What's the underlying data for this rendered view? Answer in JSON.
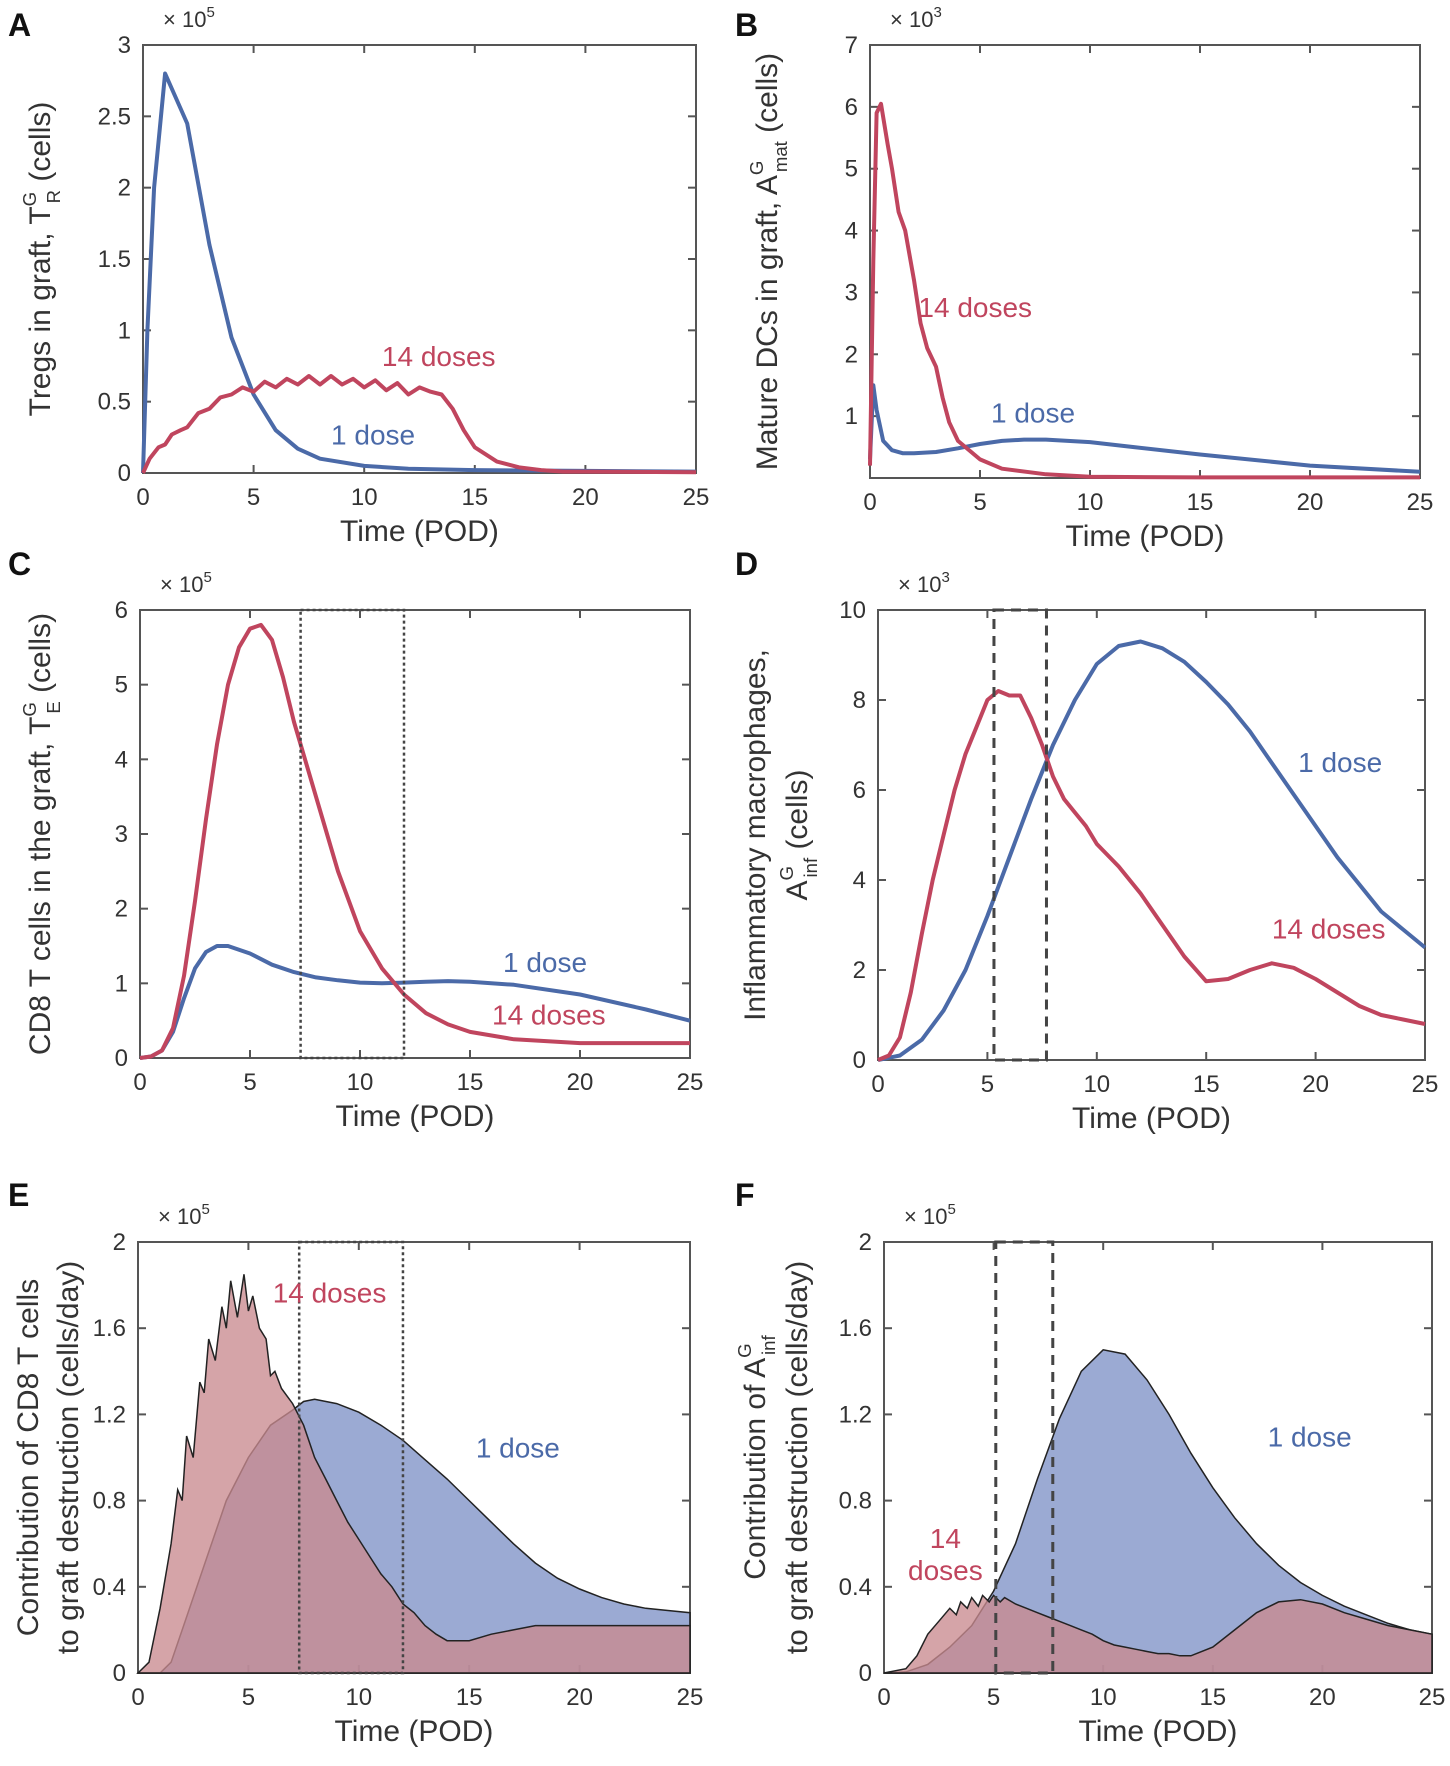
{
  "figure": {
    "xlabel": "Time (POD)",
    "series_colors": {
      "1 dose": "#4b6aa8",
      "14 doses": "#c0455e"
    },
    "fill_colors": {
      "1 dose": "#7f92c6",
      "14 doses": "#c98a90",
      "overlap": "#9e6f88"
    }
  },
  "chart_data": [
    {
      "panel": "A",
      "type": "line",
      "ylabel_parts": {
        "prefix": "Tregs in graft, T",
        "sup": "G",
        "sub": "R",
        "suffix": " (cells)"
      },
      "multiplier": "× 10",
      "exponent": "5",
      "xlim": [
        0,
        25
      ],
      "ylim": [
        0,
        3
      ],
      "xticks": [
        "0",
        "5",
        "10",
        "15",
        "20",
        "25"
      ],
      "yticks": [
        "0",
        "0.5",
        "1",
        "1.5",
        "2",
        "2.5",
        "3"
      ],
      "series": [
        {
          "name": "1 dose",
          "label": "1 dose",
          "x": [
            0,
            0.2,
            0.5,
            1,
            2,
            3,
            4,
            5,
            6,
            7,
            8,
            10,
            12,
            15,
            20,
            25
          ],
          "y": [
            0,
            1.0,
            2.0,
            2.8,
            2.45,
            1.6,
            0.95,
            0.55,
            0.3,
            0.17,
            0.1,
            0.05,
            0.03,
            0.02,
            0.015,
            0.01
          ]
        },
        {
          "name": "14 doses",
          "label": "14 doses",
          "x": [
            0,
            0.3,
            0.7,
            1.0,
            1.3,
            1.7,
            2.0,
            2.5,
            3.0,
            3.5,
            4.0,
            4.5,
            5.0,
            5.5,
            6.0,
            6.5,
            7.0,
            7.5,
            8.0,
            8.5,
            9.0,
            9.5,
            10.0,
            10.5,
            11.0,
            11.5,
            12.0,
            12.5,
            13.0,
            13.5,
            14,
            14.5,
            15,
            16,
            17,
            18,
            19,
            20,
            25
          ],
          "y": [
            0,
            0.1,
            0.18,
            0.2,
            0.27,
            0.3,
            0.32,
            0.42,
            0.45,
            0.53,
            0.55,
            0.6,
            0.57,
            0.64,
            0.6,
            0.66,
            0.62,
            0.68,
            0.62,
            0.68,
            0.62,
            0.66,
            0.6,
            0.65,
            0.58,
            0.63,
            0.55,
            0.6,
            0.57,
            0.55,
            0.45,
            0.3,
            0.18,
            0.08,
            0.04,
            0.02,
            0.01,
            0.01,
            0.005
          ]
        }
      ],
      "label_pos": {
        "1 dose": [
          8.5,
          0.2
        ],
        "14 doses": [
          10.8,
          0.75
        ]
      }
    },
    {
      "panel": "B",
      "type": "line",
      "ylabel_parts": {
        "prefix": "Mature DCs in graft, A",
        "sup": "G",
        "sub": "mat",
        "suffix": " (cells)"
      },
      "multiplier": "× 10",
      "exponent": "3",
      "xlim": [
        0,
        25
      ],
      "ylim": [
        0,
        7
      ],
      "xticks": [
        "0",
        "5",
        "10",
        "15",
        "20",
        "25"
      ],
      "yticks": [
        "1",
        "2",
        "3",
        "4",
        "5",
        "6",
        "7"
      ],
      "series": [
        {
          "name": "1 dose",
          "label": "1 dose",
          "x": [
            0,
            0.15,
            0.3,
            0.6,
            1,
            1.5,
            2,
            3,
            4,
            5,
            6,
            7,
            8,
            10,
            12,
            15,
            20,
            25
          ],
          "y": [
            0.3,
            1.5,
            1.1,
            0.6,
            0.45,
            0.4,
            0.4,
            0.42,
            0.48,
            0.55,
            0.6,
            0.62,
            0.62,
            0.58,
            0.5,
            0.38,
            0.2,
            0.1
          ]
        },
        {
          "name": "14 doses",
          "label": "14 doses",
          "x": [
            0,
            0.15,
            0.3,
            0.5,
            0.8,
            1.0,
            1.3,
            1.6,
            2.0,
            2.3,
            2.6,
            3.0,
            3.3,
            3.6,
            4.0,
            5,
            6,
            8,
            10,
            15,
            20,
            25
          ],
          "y": [
            0.2,
            3.5,
            5.9,
            6.05,
            5.4,
            5.0,
            4.3,
            4.0,
            3.2,
            2.5,
            2.1,
            1.8,
            1.3,
            0.9,
            0.6,
            0.3,
            0.15,
            0.06,
            0.02,
            0.01,
            0.01,
            0.01
          ]
        }
      ],
      "label_pos": {
        "1 dose": [
          5.5,
          0.9
        ],
        "14 doses": [
          2.2,
          2.6
        ]
      }
    },
    {
      "panel": "C",
      "type": "line",
      "ylabel_parts": {
        "prefix": "CD8 T cells in the graft, T",
        "sup": "G",
        "sub": "E",
        "suffix": " (cells)"
      },
      "multiplier": "× 10",
      "exponent": "5",
      "xlim": [
        0,
        25
      ],
      "ylim": [
        0,
        6
      ],
      "xticks": [
        "0",
        "5",
        "10",
        "15",
        "20",
        "25"
      ],
      "yticks": [
        "0",
        "1",
        "2",
        "3",
        "4",
        "5",
        "6"
      ],
      "box": [
        7.3,
        12
      ],
      "series": [
        {
          "name": "1 dose",
          "label": "1 dose",
          "x": [
            0,
            0.5,
            1,
            1.5,
            2,
            2.5,
            3,
            3.5,
            4,
            5,
            6,
            7,
            8,
            9,
            10,
            11,
            12,
            13,
            14,
            15,
            17,
            20,
            23,
            25
          ],
          "y": [
            0,
            0.02,
            0.1,
            0.35,
            0.8,
            1.2,
            1.42,
            1.5,
            1.5,
            1.4,
            1.25,
            1.15,
            1.08,
            1.04,
            1.01,
            1.0,
            1.01,
            1.02,
            1.03,
            1.02,
            0.98,
            0.85,
            0.65,
            0.5
          ]
        },
        {
          "name": "14 doses",
          "label": "14 doses",
          "x": [
            0,
            0.5,
            1,
            1.5,
            2,
            2.5,
            3,
            3.5,
            4,
            4.5,
            5,
            5.5,
            6,
            6.5,
            7,
            7.5,
            8,
            8.5,
            9,
            10,
            11,
            12,
            13,
            14,
            15,
            17,
            20,
            25
          ],
          "y": [
            0,
            0.02,
            0.1,
            0.4,
            1.1,
            2.1,
            3.2,
            4.2,
            5.0,
            5.5,
            5.75,
            5.8,
            5.6,
            5.1,
            4.5,
            4.0,
            3.5,
            3.0,
            2.5,
            1.7,
            1.2,
            0.85,
            0.6,
            0.45,
            0.35,
            0.25,
            0.2,
            0.2
          ]
        }
      ],
      "label_pos": {
        "1 dose": [
          16.5,
          1.15
        ],
        "14 doses": [
          16,
          0.45
        ]
      }
    },
    {
      "panel": "D",
      "type": "line",
      "ylabel_line1": "Inflammatory macrophages,",
      "ylabel_parts": {
        "prefix": "A",
        "sup": "G",
        "sub": "inf",
        "suffix": " (cells)"
      },
      "multiplier": "× 10",
      "exponent": "3",
      "xlim": [
        0,
        25
      ],
      "ylim": [
        0,
        10
      ],
      "xticks": [
        "0",
        "5",
        "10",
        "15",
        "20",
        "25"
      ],
      "yticks": [
        "0",
        "2",
        "4",
        "6",
        "8",
        "10"
      ],
      "box": [
        5.3,
        7.7
      ],
      "series": [
        {
          "name": "1 dose",
          "label": "1 dose",
          "x": [
            0,
            1,
            2,
            3,
            4,
            5,
            6,
            7,
            8,
            9,
            10,
            11,
            12,
            13,
            14,
            15,
            16,
            17,
            18,
            19,
            20,
            21,
            22,
            23,
            24,
            25
          ],
          "y": [
            0,
            0.1,
            0.45,
            1.1,
            2.0,
            3.2,
            4.5,
            5.8,
            7.0,
            8.0,
            8.8,
            9.2,
            9.3,
            9.15,
            8.85,
            8.4,
            7.9,
            7.3,
            6.6,
            5.9,
            5.2,
            4.5,
            3.9,
            3.3,
            2.9,
            2.5
          ]
        },
        {
          "name": "14 doses",
          "label": "14 doses",
          "x": [
            0,
            0.5,
            1,
            1.5,
            2,
            2.5,
            3,
            3.5,
            4,
            4.5,
            5,
            5.5,
            6,
            6.5,
            7,
            7.5,
            8,
            8.5,
            9,
            9.5,
            10,
            11,
            12,
            13,
            14,
            15,
            16,
            17,
            18,
            19,
            20,
            21,
            22,
            23,
            24,
            25
          ],
          "y": [
            0,
            0.1,
            0.5,
            1.5,
            2.8,
            4.0,
            5.0,
            6.0,
            6.8,
            7.4,
            8.0,
            8.2,
            8.1,
            8.1,
            7.6,
            7.0,
            6.3,
            5.8,
            5.5,
            5.2,
            4.8,
            4.3,
            3.7,
            3.0,
            2.3,
            1.75,
            1.8,
            2.0,
            2.15,
            2.05,
            1.8,
            1.5,
            1.2,
            1.0,
            0.9,
            0.8
          ]
        }
      ],
      "label_pos": {
        "1 dose": [
          19.2,
          6.4
        ],
        "14 doses": [
          18,
          2.7
        ]
      }
    },
    {
      "panel": "E",
      "type": "area",
      "ylabel_line1": "Contribution of CD8 T cells",
      "ylabel_line2": "to graft destruction (cells/day)",
      "multiplier": "× 10",
      "exponent": "5",
      "xlim": [
        0,
        25
      ],
      "ylim": [
        0,
        2
      ],
      "xticks": [
        "0",
        "5",
        "10",
        "15",
        "20",
        "25"
      ],
      "yticks": [
        "0",
        "0.4",
        "0.8",
        "1.2",
        "1.6",
        "2"
      ],
      "box": [
        7.3,
        12
      ],
      "series": [
        {
          "name": "1 dose",
          "label": "1 dose",
          "x": [
            0,
            1,
            1.5,
            2,
            3,
            4,
            5,
            6,
            7,
            7.5,
            8,
            9,
            10,
            11,
            12,
            13,
            14,
            15,
            16,
            17,
            18,
            19,
            20,
            21,
            22,
            23,
            24,
            25
          ],
          "y": [
            0,
            0.0,
            0.05,
            0.2,
            0.5,
            0.8,
            1.0,
            1.15,
            1.22,
            1.26,
            1.27,
            1.25,
            1.21,
            1.15,
            1.08,
            0.99,
            0.9,
            0.8,
            0.7,
            0.6,
            0.51,
            0.44,
            0.39,
            0.35,
            0.32,
            0.3,
            0.29,
            0.28
          ]
        },
        {
          "name": "14 doses",
          "label": "14 doses",
          "x": [
            0,
            0.5,
            1,
            1.5,
            1.8,
            2.0,
            2.2,
            2.5,
            2.8,
            3.0,
            3.2,
            3.5,
            3.8,
            4.0,
            4.2,
            4.5,
            4.8,
            5.0,
            5.2,
            5.5,
            5.8,
            6.0,
            6.2,
            6.5,
            7.0,
            7.5,
            8.0,
            8.5,
            9.0,
            9.5,
            10,
            10.5,
            11,
            11.5,
            12,
            12.5,
            13,
            13.5,
            14,
            15,
            16,
            17,
            18,
            20,
            22,
            25
          ],
          "y": [
            0,
            0.05,
            0.3,
            0.6,
            0.85,
            0.8,
            1.1,
            1.0,
            1.35,
            1.3,
            1.55,
            1.45,
            1.7,
            1.6,
            1.82,
            1.65,
            1.85,
            1.68,
            1.75,
            1.6,
            1.55,
            1.38,
            1.4,
            1.32,
            1.25,
            1.15,
            1.0,
            0.9,
            0.8,
            0.7,
            0.62,
            0.54,
            0.46,
            0.4,
            0.32,
            0.28,
            0.22,
            0.18,
            0.15,
            0.15,
            0.18,
            0.2,
            0.22,
            0.22,
            0.22,
            0.22
          ]
        }
      ],
      "label_pos": {
        "1 dose": [
          15.3,
          1.0
        ],
        "14 doses": [
          6.1,
          1.72
        ]
      }
    },
    {
      "panel": "F",
      "type": "area",
      "ylabel_line1_parts": {
        "prefix": "Contribution of A",
        "sup": "G",
        "sub": "inf"
      },
      "ylabel_line2": "to graft destruction (cells/day)",
      "multiplier": "× 10",
      "exponent": "5",
      "xlim": [
        0,
        25
      ],
      "ylim": [
        0,
        2
      ],
      "xticks": [
        "0",
        "5",
        "10",
        "15",
        "20",
        "25"
      ],
      "yticks": [
        "0",
        "0.4",
        "0.8",
        "1.2",
        "1.6",
        "2"
      ],
      "box": [
        5.1,
        7.7
      ],
      "series": [
        {
          "name": "1 dose",
          "label": "1 dose",
          "x": [
            0,
            1,
            2,
            3,
            4,
            5,
            6,
            7,
            8,
            9,
            10,
            11,
            12,
            13,
            14,
            15,
            16,
            17,
            18,
            19,
            20,
            21,
            22,
            23,
            24,
            25
          ],
          "y": [
            0,
            0.005,
            0.04,
            0.12,
            0.22,
            0.38,
            0.6,
            0.9,
            1.18,
            1.4,
            1.5,
            1.48,
            1.36,
            1.2,
            1.02,
            0.86,
            0.72,
            0.6,
            0.5,
            0.42,
            0.36,
            0.31,
            0.27,
            0.23,
            0.2,
            0.18
          ]
        },
        {
          "name": "14 doses",
          "label": "14 doses",
          "x": [
            0,
            1,
            1.5,
            2,
            2.5,
            3,
            3.3,
            3.5,
            3.8,
            4.0,
            4.3,
            4.5,
            4.8,
            5.0,
            5.3,
            5.5,
            6.0,
            6.5,
            7.0,
            7.5,
            8.0,
            8.5,
            9,
            9.5,
            10,
            10.5,
            11,
            11.5,
            12,
            12.5,
            13,
            13.5,
            14,
            15,
            16,
            17,
            18,
            19,
            20,
            21,
            22,
            23,
            24,
            25
          ],
          "y": [
            0,
            0.02,
            0.08,
            0.18,
            0.24,
            0.3,
            0.27,
            0.33,
            0.3,
            0.35,
            0.31,
            0.36,
            0.33,
            0.36,
            0.33,
            0.35,
            0.32,
            0.3,
            0.28,
            0.26,
            0.24,
            0.22,
            0.2,
            0.18,
            0.15,
            0.13,
            0.12,
            0.11,
            0.1,
            0.09,
            0.09,
            0.08,
            0.08,
            0.12,
            0.2,
            0.28,
            0.33,
            0.34,
            0.32,
            0.28,
            0.25,
            0.22,
            0.2,
            0.18
          ]
        }
      ],
      "label_pos": {
        "1 dose": [
          17.5,
          1.05
        ],
        "14 doses": [
          2.8,
          0.58
        ]
      },
      "label_14_line1": "14",
      "label_14_line2": "doses"
    }
  ]
}
